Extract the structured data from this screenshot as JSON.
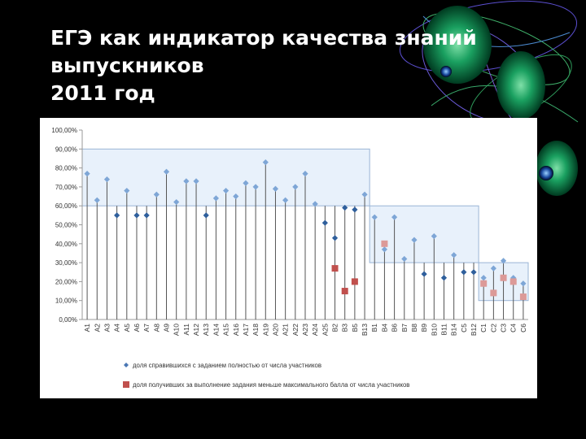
{
  "slide": {
    "title_lines": [
      "ЕГЭ как индикатор качества знаний",
      "выпускников",
      "2011 год"
    ]
  },
  "colors": {
    "background": "#000000",
    "series1": "#4a77b4",
    "series2": "#c0504d",
    "series2_light": "#dc9a98",
    "band_fill": "#e8f1fb",
    "band_stroke": "#9ab5d6"
  },
  "chart_data": {
    "type": "scatter",
    "title": "",
    "xlabel": "",
    "ylabel": "",
    "ylim": [
      0,
      100
    ],
    "y_ticks": [
      "0,00%",
      "10,00%",
      "20,00%",
      "30,00%",
      "40,00%",
      "50,00%",
      "60,00%",
      "70,00%",
      "80,00%",
      "90,00%",
      "100,00%"
    ],
    "categories": [
      "A1",
      "A2",
      "A3",
      "A4",
      "A5",
      "A6",
      "A7",
      "A8",
      "A9",
      "A10",
      "A11",
      "A12",
      "A13",
      "A14",
      "A15",
      "A16",
      "A17",
      "A18",
      "A19",
      "A20",
      "A21",
      "A22",
      "A23",
      "A24",
      "A25",
      "B2",
      "B3",
      "B5",
      "B13",
      "B1",
      "B4",
      "B6",
      "B7",
      "B8",
      "B9",
      "B10",
      "B11",
      "B14",
      "C5",
      "B12",
      "C1",
      "C2",
      "C3",
      "C4",
      "C6"
    ],
    "baseline_bands": [
      {
        "from": "A1",
        "to": "B13",
        "baseline": 60,
        "upper": 90
      },
      {
        "from": "B1",
        "to": "B12",
        "baseline": 30,
        "upper": 60
      },
      {
        "from": "C1",
        "to": "C6",
        "baseline": 10,
        "upper": 30
      }
    ],
    "series": [
      {
        "name": "доля справившихся с заданием полностью от числа участников",
        "marker": "diamond",
        "values": [
          77,
          63,
          74,
          55,
          68,
          55,
          55,
          66,
          78,
          62,
          73,
          73,
          55,
          64,
          68,
          65,
          72,
          70,
          83,
          69,
          63,
          70,
          77,
          61,
          51,
          43,
          59,
          58,
          66,
          54,
          37,
          54,
          32,
          42,
          24,
          44,
          22,
          34,
          25,
          25,
          22,
          27,
          31,
          22,
          19
        ]
      },
      {
        "name": "доля получивших за выполнение задания меньше максимального балла от числа участников",
        "marker": "square",
        "values": [
          null,
          null,
          null,
          null,
          null,
          null,
          null,
          null,
          null,
          null,
          null,
          null,
          null,
          null,
          null,
          null,
          null,
          null,
          null,
          null,
          null,
          null,
          null,
          null,
          null,
          27,
          15,
          20,
          null,
          null,
          40,
          null,
          null,
          null,
          null,
          null,
          null,
          null,
          null,
          null,
          19,
          14,
          22,
          20,
          12
        ]
      }
    ],
    "legend_position": "bottom"
  }
}
